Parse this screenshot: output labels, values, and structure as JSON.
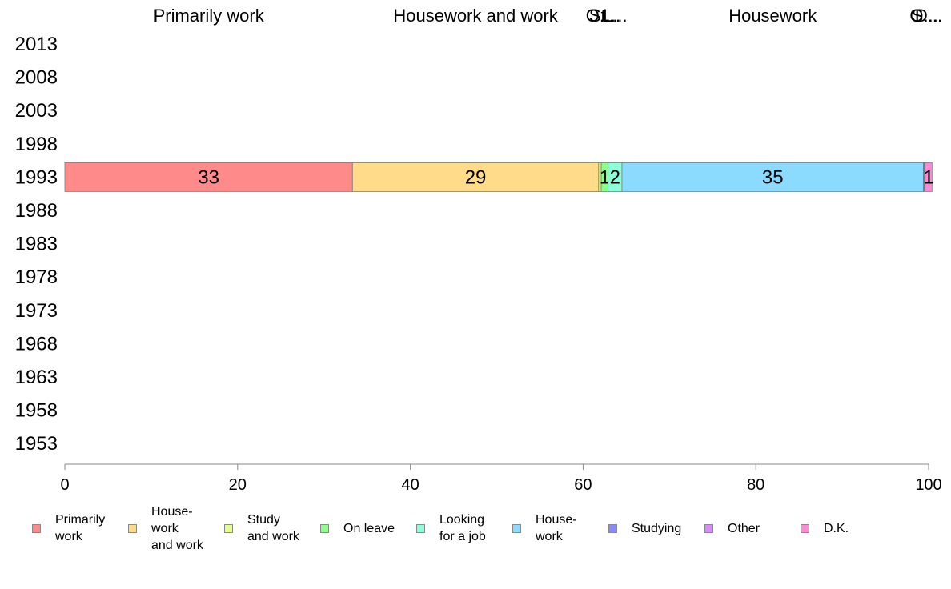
{
  "chart_data": {
    "type": "bar",
    "orientation": "horizontal",
    "stacked": true,
    "categories": [
      "2013",
      "2008",
      "2003",
      "1998",
      "1993",
      "1988",
      "1983",
      "1978",
      "1973",
      "1968",
      "1963",
      "1958",
      "1953"
    ],
    "x_ticks": [
      "0",
      "20",
      "40",
      "60",
      "80",
      "100"
    ],
    "xlim": [
      0,
      100
    ],
    "grid": false,
    "legend_position": "bottom",
    "top_labels": [
      "Primarily work",
      "Housework and work",
      "St...",
      "O...",
      "L...",
      "Housework",
      "S...",
      "O...",
      "D..."
    ],
    "series": [
      {
        "name": "Primarily work",
        "legend_label": "Primarily\nwork",
        "color": "#ff8a8a",
        "values": [
          null,
          null,
          null,
          null,
          33.3,
          null,
          null,
          null,
          null,
          null,
          null,
          null,
          null
        ],
        "data_label": "33"
      },
      {
        "name": "Housework and work",
        "legend_label": "House-\nwork\nand work",
        "color": "#ffdb8a",
        "values": [
          null,
          null,
          null,
          null,
          28.5,
          null,
          null,
          null,
          null,
          null,
          null,
          null,
          null
        ],
        "data_label": "29"
      },
      {
        "name": "Study and work",
        "legend_label": "Study\nand work",
        "color": "#e3ff8a",
        "values": [
          null,
          null,
          null,
          null,
          0.3,
          null,
          null,
          null,
          null,
          null,
          null,
          null,
          null
        ],
        "data_label": ""
      },
      {
        "name": "On leave",
        "legend_label": "On leave",
        "color": "#8aff8a",
        "values": [
          null,
          null,
          null,
          null,
          0.8,
          null,
          null,
          null,
          null,
          null,
          null,
          null,
          null
        ],
        "data_label": "1"
      },
      {
        "name": "Looking for a job",
        "legend_label": "Looking\nfor a job",
        "color": "#8affd8",
        "values": [
          null,
          null,
          null,
          null,
          1.6,
          null,
          null,
          null,
          null,
          null,
          null,
          null,
          null
        ],
        "data_label": "2"
      },
      {
        "name": "Housework",
        "legend_label": "House-\nwork",
        "color": "#8adbff",
        "values": [
          null,
          null,
          null,
          null,
          34.9,
          null,
          null,
          null,
          null,
          null,
          null,
          null,
          null
        ],
        "data_label": "35"
      },
      {
        "name": "Studying",
        "legend_label": "Studying",
        "color": "#8a8aff",
        "values": [
          null,
          null,
          null,
          null,
          0.1,
          null,
          null,
          null,
          null,
          null,
          null,
          null,
          null
        ],
        "data_label": ""
      },
      {
        "name": "Other",
        "legend_label": "Other",
        "color": "#d88aff",
        "values": [
          null,
          null,
          null,
          null,
          0.1,
          null,
          null,
          null,
          null,
          null,
          null,
          null,
          null
        ],
        "data_label": ""
      },
      {
        "name": "D.K.",
        "legend_label": "D.K.",
        "color": "#ff8ad8",
        "values": [
          null,
          null,
          null,
          null,
          0.8,
          null,
          null,
          null,
          null,
          null,
          null,
          null,
          null
        ],
        "data_label": "1"
      }
    ]
  }
}
